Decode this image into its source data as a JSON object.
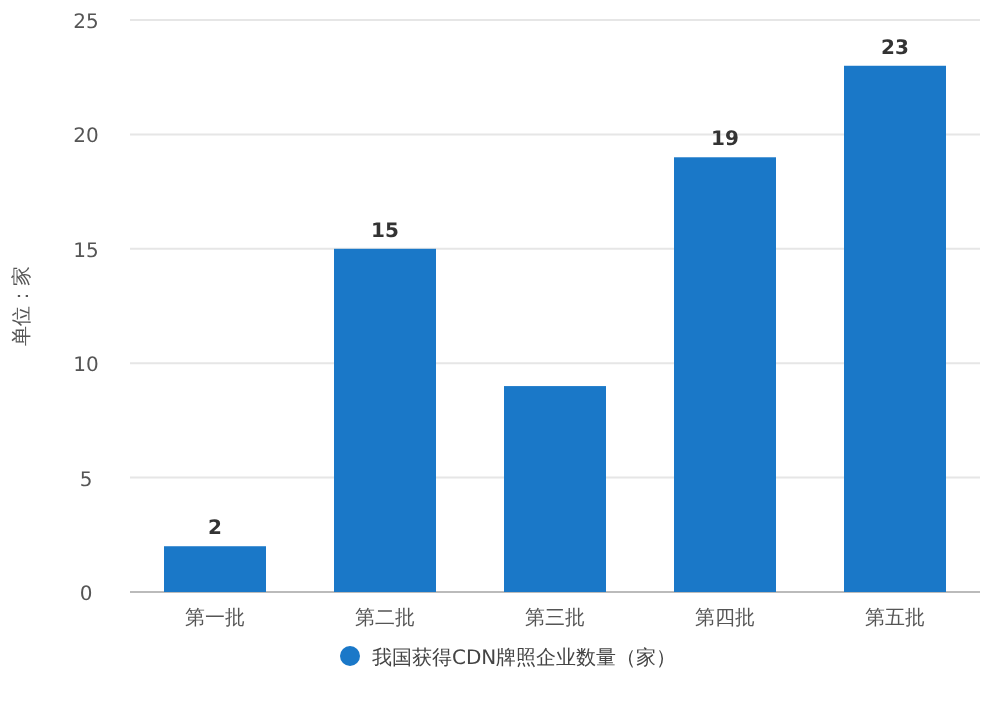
{
  "chart_data": {
    "type": "bar",
    "ylabel": "单位：家",
    "categories": [
      "第一批",
      "第二批",
      "第三批",
      "第四批",
      "第五批"
    ],
    "series": [
      {
        "name": "我国获得CDN牌照企业数量（家）",
        "color": "#1a78c8",
        "values": [
          2,
          15,
          9,
          19,
          23
        ]
      }
    ],
    "value_labels": [
      "2",
      "15",
      null,
      "19",
      "23"
    ],
    "ylim": [
      0,
      25
    ],
    "yticks": [
      0,
      5,
      10,
      15,
      20,
      25
    ],
    "grid": "y",
    "legend": "bottom",
    "marker": "circle"
  }
}
